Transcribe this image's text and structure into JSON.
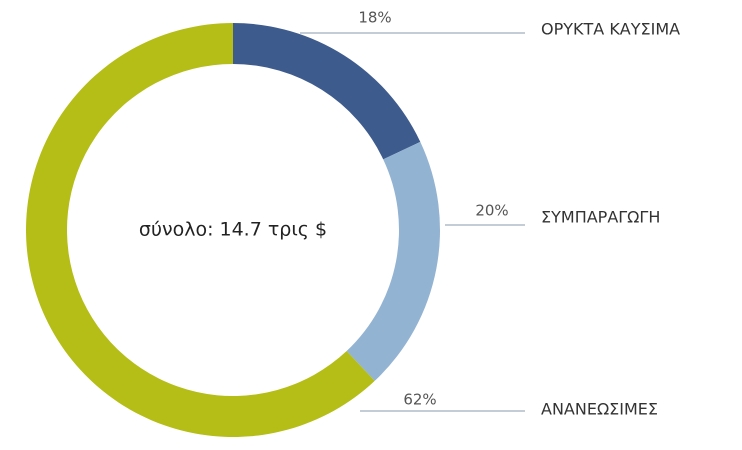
{
  "chart_data": {
    "type": "donut",
    "center_label": "σύνολο: 14.7 τρις $",
    "categories": [
      "ΟΡΥΚΤΑ ΚΑΥΣΙΜΑ",
      "ΣΥΜΠΑΡΑΓΩΓΗ",
      "ΑΝΑΝΕΩΣΙΜΕΣ"
    ],
    "values": [
      18,
      20,
      62
    ],
    "value_labels": [
      "18%",
      "20%",
      "62%"
    ],
    "colors": [
      "#3e5b8e",
      "#93b3d2",
      "#b5be17"
    ]
  }
}
